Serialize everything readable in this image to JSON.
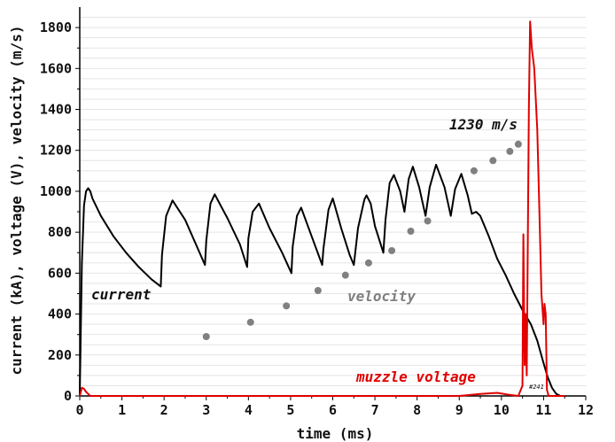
{
  "chart_data": {
    "type": "line",
    "xlabel": "time (ms)",
    "ylabel": "current (kA), voltage (V), velocity (m/s)",
    "xlim": [
      0,
      12
    ],
    "ylim": [
      0,
      1900
    ],
    "x_ticks": [
      0,
      1,
      2,
      3,
      4,
      5,
      6,
      7,
      8,
      9,
      10,
      11,
      12
    ],
    "y_ticks": [
      0,
      200,
      400,
      600,
      800,
      1000,
      1200,
      1400,
      1600,
      1800
    ],
    "grid": "horizontal minor lines every 50",
    "colors": {
      "current": "#000000",
      "velocity": "#808080",
      "muzzle_voltage": "#e00000"
    },
    "series": [
      {
        "name": "current",
        "style": "line",
        "x": [
          0.0,
          0.05,
          0.1,
          0.15,
          0.2,
          0.25,
          0.3,
          0.5,
          0.8,
          1.1,
          1.4,
          1.7,
          1.92,
          1.95,
          2.05,
          2.2,
          2.5,
          2.8,
          2.97,
          3.0,
          3.1,
          3.2,
          3.5,
          3.8,
          3.97,
          4.0,
          4.1,
          4.25,
          4.5,
          4.8,
          5.02,
          5.05,
          5.15,
          5.25,
          5.5,
          5.75,
          5.78,
          5.9,
          6.0,
          6.2,
          6.4,
          6.5,
          6.6,
          6.75,
          6.8,
          6.9,
          7.0,
          7.2,
          7.25,
          7.35,
          7.45,
          7.6,
          7.7,
          7.8,
          7.9,
          8.05,
          8.2,
          8.3,
          8.45,
          8.65,
          8.8,
          8.9,
          9.05,
          9.2,
          9.3,
          9.4,
          9.5,
          9.7,
          9.9,
          10.1,
          10.3,
          10.5,
          10.7,
          10.85,
          11.0,
          11.1,
          11.2,
          11.3,
          11.4
        ],
        "values": [
          0,
          650,
          930,
          1000,
          1015,
          1000,
          965,
          880,
          780,
          700,
          630,
          570,
          535,
          690,
          880,
          955,
          860,
          720,
          640,
          760,
          940,
          985,
          870,
          740,
          630,
          770,
          900,
          940,
          820,
          700,
          600,
          730,
          880,
          920,
          780,
          640,
          720,
          910,
          965,
          820,
          690,
          640,
          820,
          960,
          980,
          940,
          830,
          700,
          860,
          1040,
          1080,
          1000,
          900,
          1060,
          1120,
          1020,
          880,
          1020,
          1130,
          1020,
          880,
          1010,
          1085,
          980,
          890,
          900,
          880,
          780,
          670,
          590,
          500,
          420,
          350,
          270,
          160,
          90,
          40,
          10,
          0
        ]
      },
      {
        "name": "velocity",
        "style": "markers",
        "x": [
          3.0,
          4.05,
          4.9,
          5.65,
          6.3,
          6.85,
          7.4,
          7.85,
          8.25,
          9.35,
          9.8,
          10.2,
          10.4
        ],
        "values": [
          290,
          360,
          440,
          515,
          590,
          650,
          710,
          805,
          855,
          1100,
          1150,
          1195,
          1230
        ]
      },
      {
        "name": "muzzle voltage",
        "style": "line",
        "x": [
          0.0,
          0.05,
          0.1,
          0.15,
          0.2,
          0.25,
          0.4,
          1.0,
          2.0,
          3.0,
          4.0,
          5.0,
          6.0,
          7.0,
          8.0,
          9.0,
          9.5,
          9.9,
          10.2,
          10.4,
          10.5,
          10.52,
          10.55,
          10.57,
          10.6,
          10.65,
          10.68,
          10.72,
          10.78,
          10.85,
          10.9,
          10.95,
          11.0,
          11.02,
          11.05,
          11.08,
          11.12,
          11.2,
          11.5
        ],
        "values": [
          0,
          40,
          35,
          20,
          10,
          0,
          0,
          0,
          0,
          0,
          0,
          0,
          0,
          0,
          0,
          0,
          10,
          15,
          5,
          0,
          50,
          790,
          150,
          400,
          100,
          1400,
          1830,
          1700,
          1600,
          1300,
          900,
          500,
          350,
          450,
          400,
          30,
          0,
          0,
          0
        ]
      }
    ],
    "annotations": {
      "current_label": "current",
      "velocity_label": "velocity",
      "voltage_label": "muzzle voltage",
      "final_velocity": "1230 m/s",
      "run_id": "#241"
    }
  }
}
